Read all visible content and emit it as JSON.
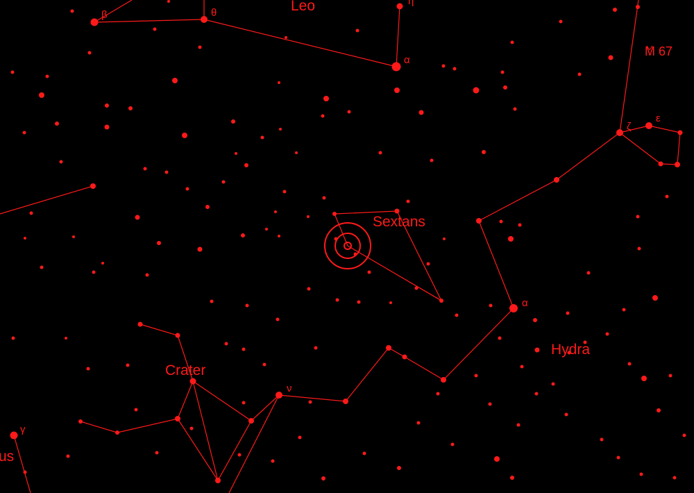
{
  "colors": {
    "background": "#000000",
    "ink": "#ff1a1a"
  },
  "constellations": [
    "Leo",
    "Sextans",
    "Crater",
    "Hydra",
    "us"
  ],
  "greek_labels": [
    "β",
    "θ",
    "η",
    "α",
    "ζ",
    "ε",
    "α",
    "ν",
    "γ"
  ],
  "deep_sky": [
    "M 67"
  ],
  "marker": "target-circle"
}
